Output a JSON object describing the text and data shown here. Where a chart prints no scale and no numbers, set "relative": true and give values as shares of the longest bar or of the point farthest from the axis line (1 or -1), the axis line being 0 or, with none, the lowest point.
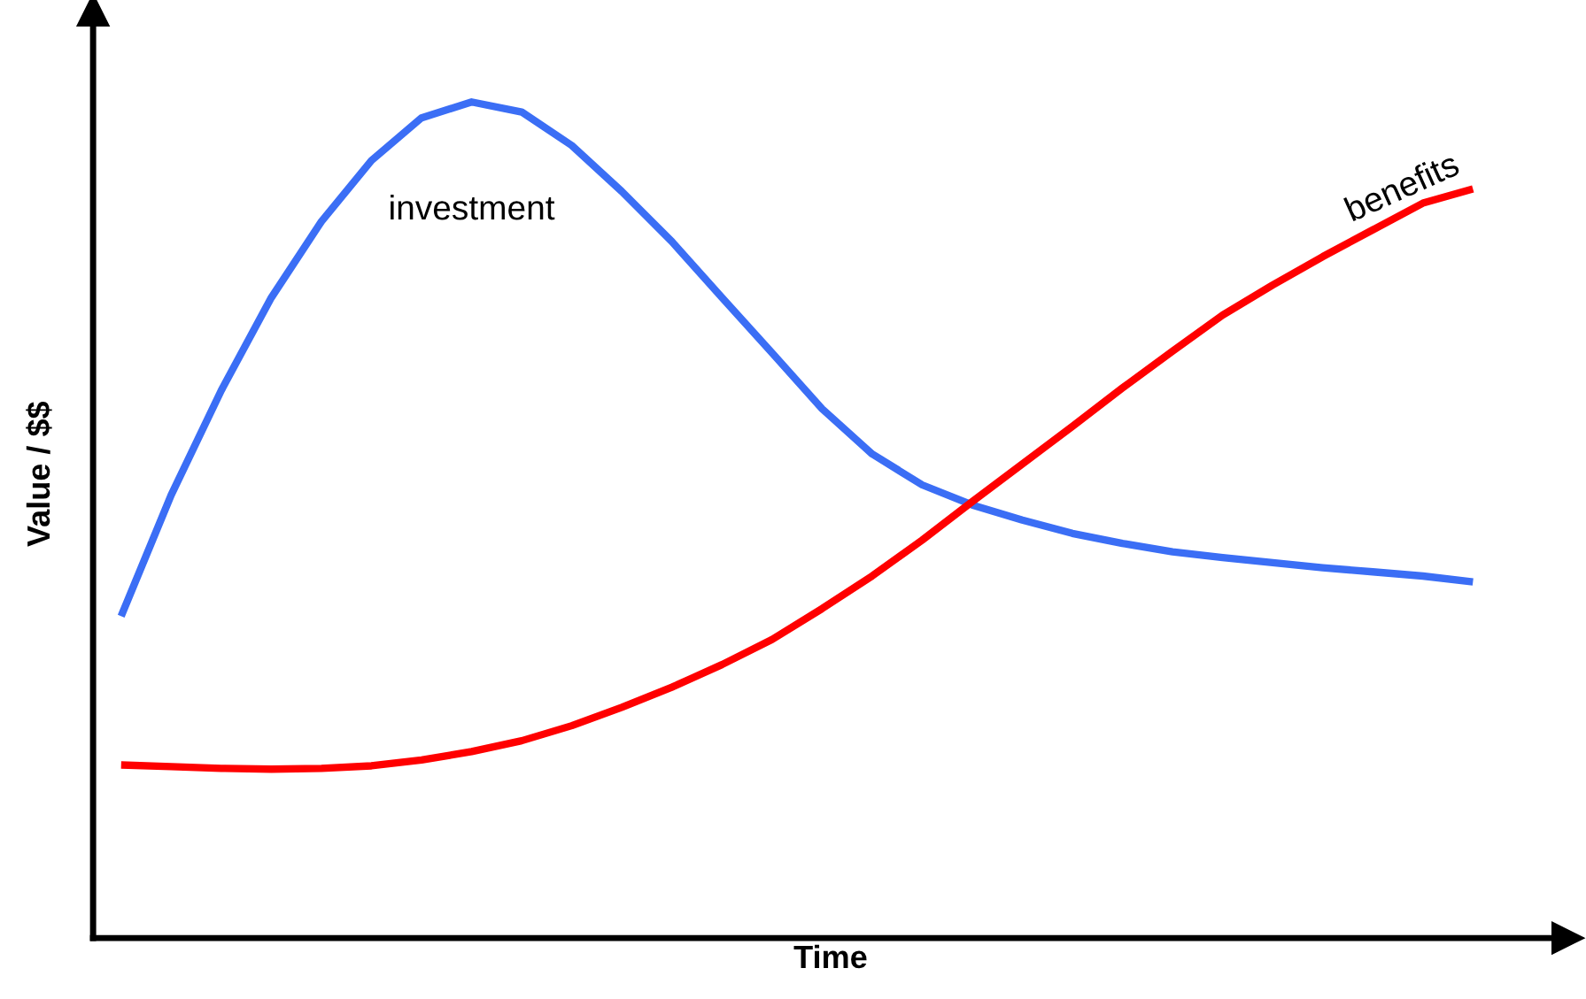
{
  "chart_data": {
    "type": "line",
    "relative": true,
    "xlabel": "Time",
    "ylabel": "Value / $$",
    "categories": [
      null,
      null,
      null,
      null,
      null,
      null,
      null,
      null,
      null,
      null,
      null,
      null,
      null,
      null,
      null,
      null,
      null,
      null,
      null,
      null,
      null,
      null,
      null,
      null,
      null,
      null,
      null,
      null
    ],
    "series": [
      {
        "name": "investment",
        "color": "#3b6ef5",
        "values": [
          0.385,
          0.53,
          0.655,
          0.766,
          0.857,
          0.93,
          0.981,
          1.0,
          0.988,
          0.948,
          0.893,
          0.833,
          0.766,
          0.7,
          0.633,
          0.579,
          0.542,
          0.518,
          0.5,
          0.484,
          0.472,
          0.462,
          0.455,
          0.449,
          0.443,
          0.438,
          0.433,
          0.426
        ]
      },
      {
        "name": "benefits",
        "color": "#ff0000",
        "values": [
          0.207,
          0.205,
          0.203,
          0.202,
          0.203,
          0.206,
          0.213,
          0.223,
          0.236,
          0.254,
          0.276,
          0.3,
          0.327,
          0.357,
          0.394,
          0.433,
          0.476,
          0.522,
          0.567,
          0.612,
          0.658,
          0.702,
          0.745,
          0.781,
          0.815,
          0.847,
          0.879,
          0.896
        ]
      }
    ]
  }
}
